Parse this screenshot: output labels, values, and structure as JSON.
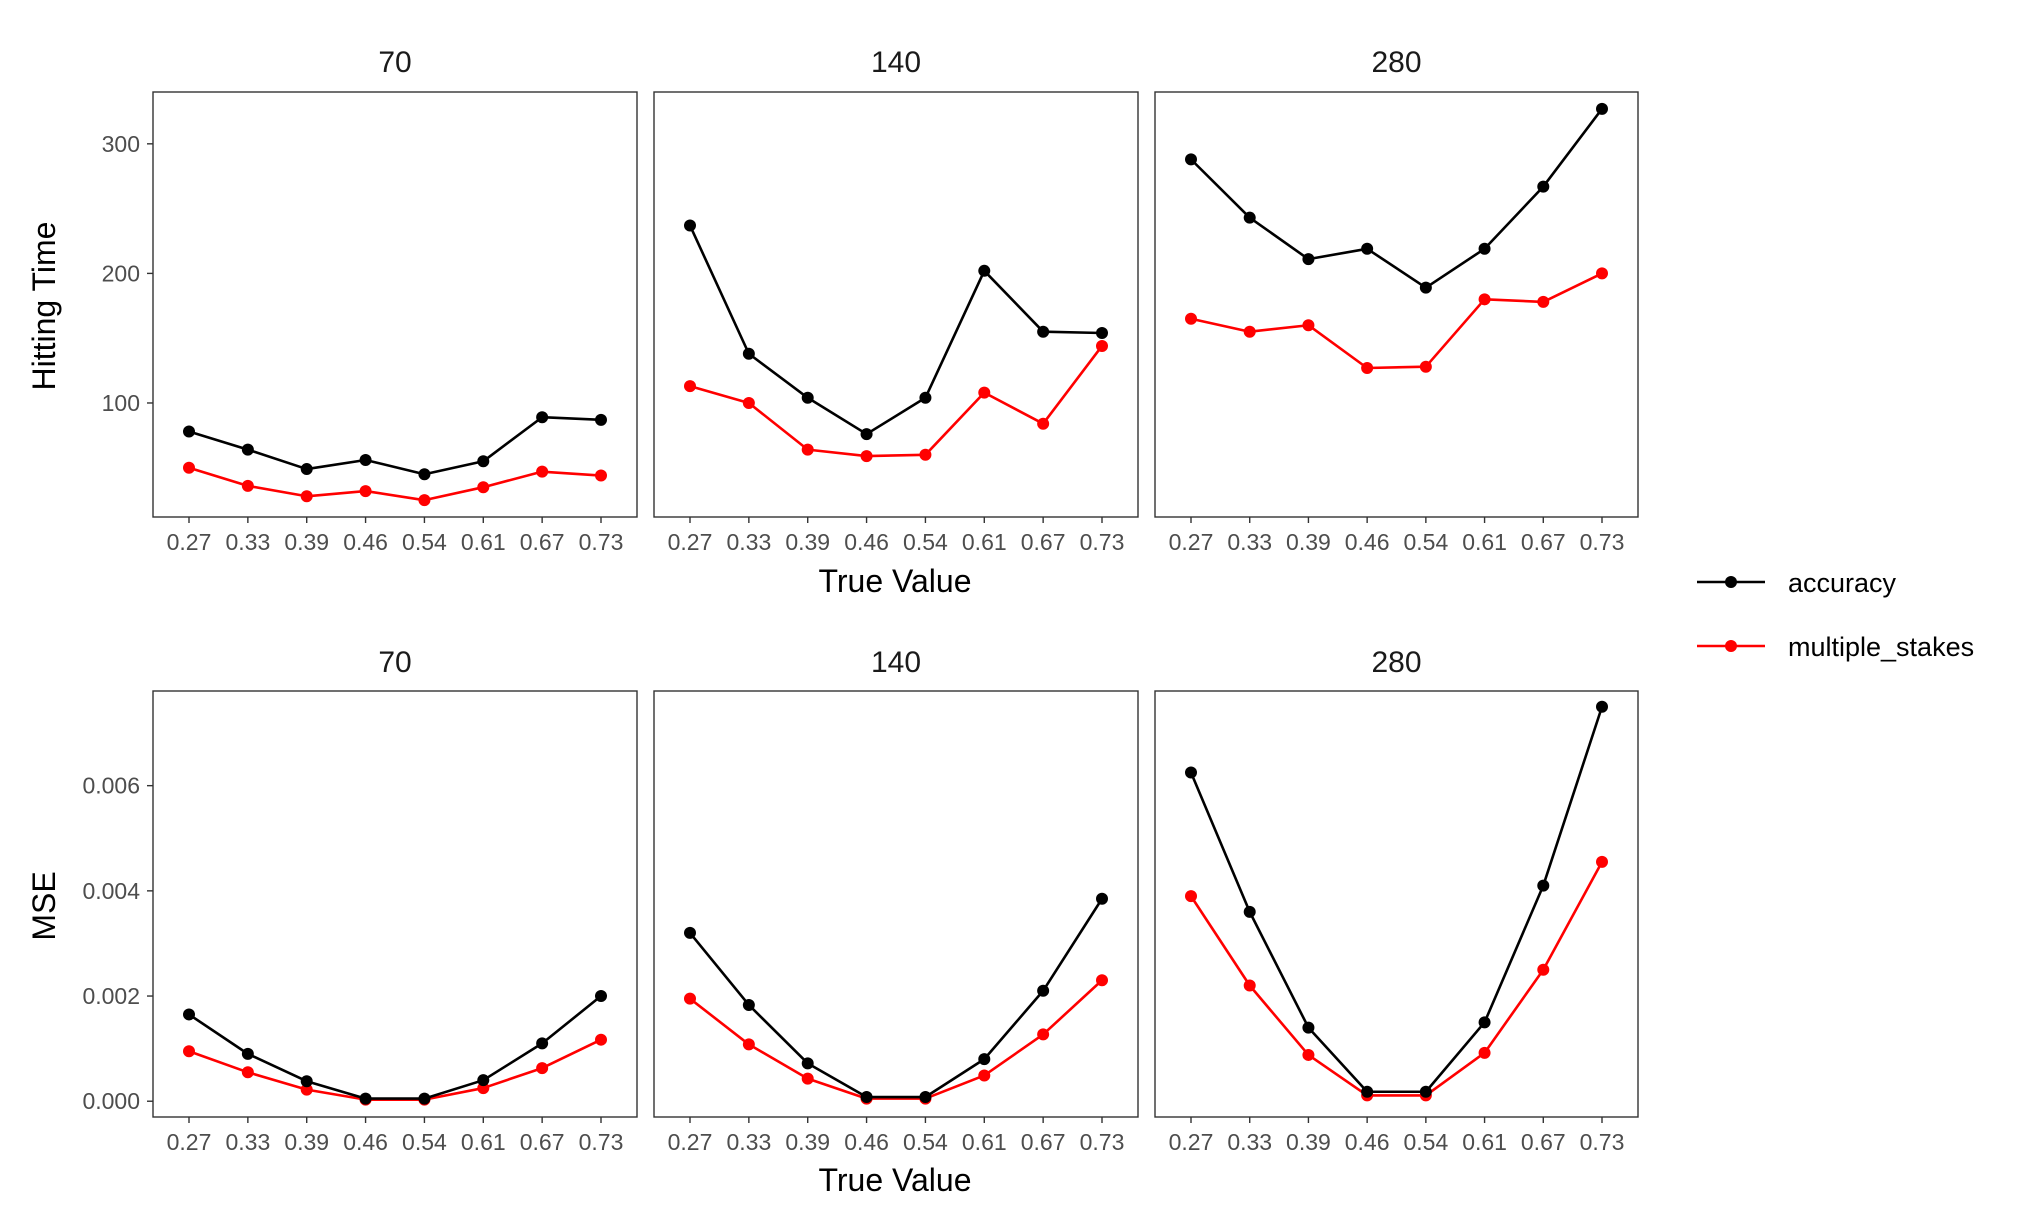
{
  "chart_data": {
    "type": "line",
    "x_categories": [
      "0.27",
      "0.33",
      "0.39",
      "0.46",
      "0.54",
      "0.61",
      "0.67",
      "0.73"
    ],
    "column_strips": [
      "70",
      "140",
      "280"
    ],
    "xlabel": "True Value",
    "legend": {
      "position": "right",
      "entries": [
        {
          "key": "accuracy",
          "label": "accuracy",
          "color": "#000000"
        },
        {
          "key": "multiple_stakes",
          "label": "multiple_stakes",
          "color": "#ff0000"
        }
      ]
    },
    "grid": false,
    "rows": [
      {
        "ylabel": "Hitting Time",
        "ylim": [
          12,
          340
        ],
        "yticks": [
          100,
          200,
          300
        ],
        "ytick_labels": [
          "100",
          "200",
          "300"
        ],
        "panels": [
          {
            "series": [
              {
                "key": "accuracy",
                "values": [
                  78,
                  64,
                  49,
                  56,
                  45,
                  55,
                  89,
                  87
                ]
              },
              {
                "key": "multiple_stakes",
                "values": [
                  50,
                  36,
                  28,
                  32,
                  25,
                  35,
                  47,
                  44
                ]
              }
            ]
          },
          {
            "series": [
              {
                "key": "accuracy",
                "values": [
                  237,
                  138,
                  104,
                  76,
                  104,
                  202,
                  155,
                  154
                ]
              },
              {
                "key": "multiple_stakes",
                "values": [
                  113,
                  100,
                  64,
                  59,
                  60,
                  108,
                  84,
                  144
                ]
              }
            ]
          },
          {
            "series": [
              {
                "key": "accuracy",
                "values": [
                  288,
                  243,
                  211,
                  219,
                  189,
                  219,
                  267,
                  327
                ]
              },
              {
                "key": "multiple_stakes",
                "values": [
                  165,
                  155,
                  160,
                  127,
                  128,
                  180,
                  178,
                  200
                ]
              }
            ]
          }
        ]
      },
      {
        "ylabel": "MSE",
        "ylim": [
          -0.0003,
          0.0078
        ],
        "yticks": [
          0,
          0.002,
          0.004,
          0.006
        ],
        "ytick_labels": [
          "0.000",
          "0.002",
          "0.004",
          "0.006"
        ],
        "panels": [
          {
            "series": [
              {
                "key": "accuracy",
                "values": [
                  0.00165,
                  0.0009,
                  0.00038,
                  5e-05,
                  5e-05,
                  0.0004,
                  0.0011,
                  0.002
                ]
              },
              {
                "key": "multiple_stakes",
                "values": [
                  0.00095,
                  0.00055,
                  0.00022,
                  3e-05,
                  3e-05,
                  0.00025,
                  0.00063,
                  0.00117
                ]
              }
            ]
          },
          {
            "series": [
              {
                "key": "accuracy",
                "values": [
                  0.0032,
                  0.00183,
                  0.00072,
                  8e-05,
                  8e-05,
                  0.0008,
                  0.0021,
                  0.00385
                ]
              },
              {
                "key": "multiple_stakes",
                "values": [
                  0.00195,
                  0.00108,
                  0.00043,
                  5e-05,
                  5e-05,
                  0.00049,
                  0.00127,
                  0.0023
                ]
              }
            ]
          },
          {
            "series": [
              {
                "key": "accuracy",
                "values": [
                  0.00625,
                  0.0036,
                  0.0014,
                  0.00018,
                  0.00018,
                  0.0015,
                  0.0041,
                  0.0075
                ]
              },
              {
                "key": "multiple_stakes",
                "values": [
                  0.0039,
                  0.0022,
                  0.00088,
                  0.00011,
                  0.00011,
                  0.00092,
                  0.0025,
                  0.00455
                ]
              }
            ]
          }
        ]
      }
    ]
  }
}
